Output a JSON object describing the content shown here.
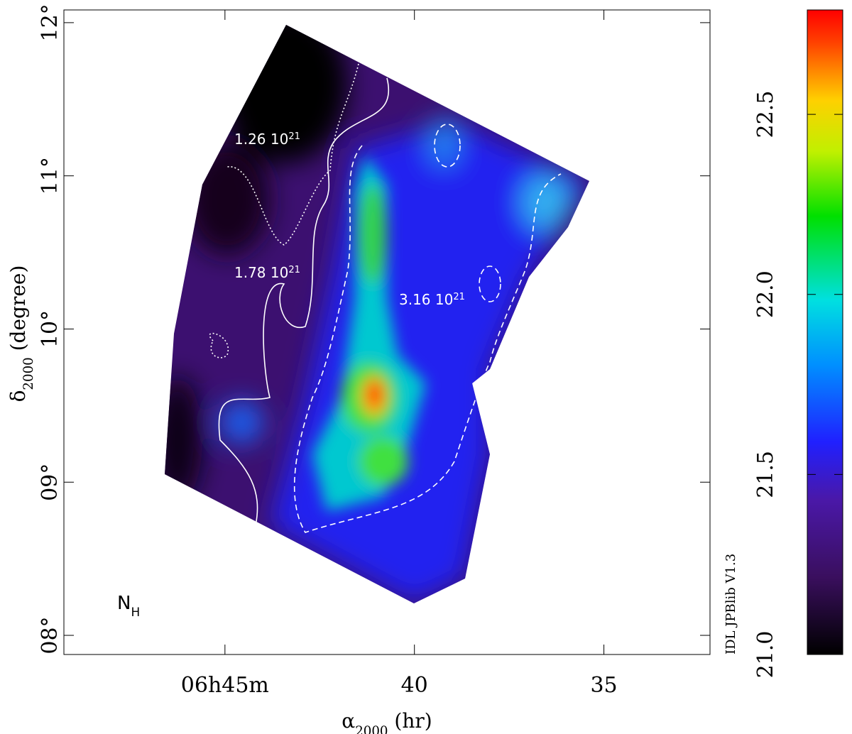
{
  "chart_data": {
    "type": "heatmap",
    "xlabel": {
      "main": "α",
      "sub": "2000",
      "rest": " (hr)"
    },
    "ylabel": {
      "main": "δ",
      "sub": "2000",
      "rest": " (degree)"
    },
    "xlim": [
      49.25,
      32.2
    ],
    "ylim": [
      7.875,
      12.083
    ],
    "xticks": [
      {
        "value": 45,
        "label": "06h45m"
      },
      40,
      35
    ],
    "yticks": [
      {
        "value": 8,
        "label": "08°"
      },
      {
        "value": 9,
        "label": "09°"
      },
      {
        "value": 10,
        "label": "10°"
      },
      {
        "value": 11,
        "label": "11°"
      },
      {
        "value": 12,
        "label": "12°"
      }
    ],
    "colorbar": {
      "lim": [
        21.0,
        22.79
      ],
      "ticks": [
        {
          "value": 21,
          "label": "21.0"
        },
        21.5,
        {
          "value": 22,
          "label": "22.0"
        },
        22.5
      ]
    },
    "annotations": [
      {
        "main": "1.26 10",
        "sup": "21"
      },
      {
        "main": "1.78 10",
        "sup": "21"
      },
      {
        "main": "3.16 10",
        "sup": "21"
      },
      {
        "main": "N",
        "sub": "H"
      }
    ],
    "credit": "IDL JPBlib V1.3"
  }
}
